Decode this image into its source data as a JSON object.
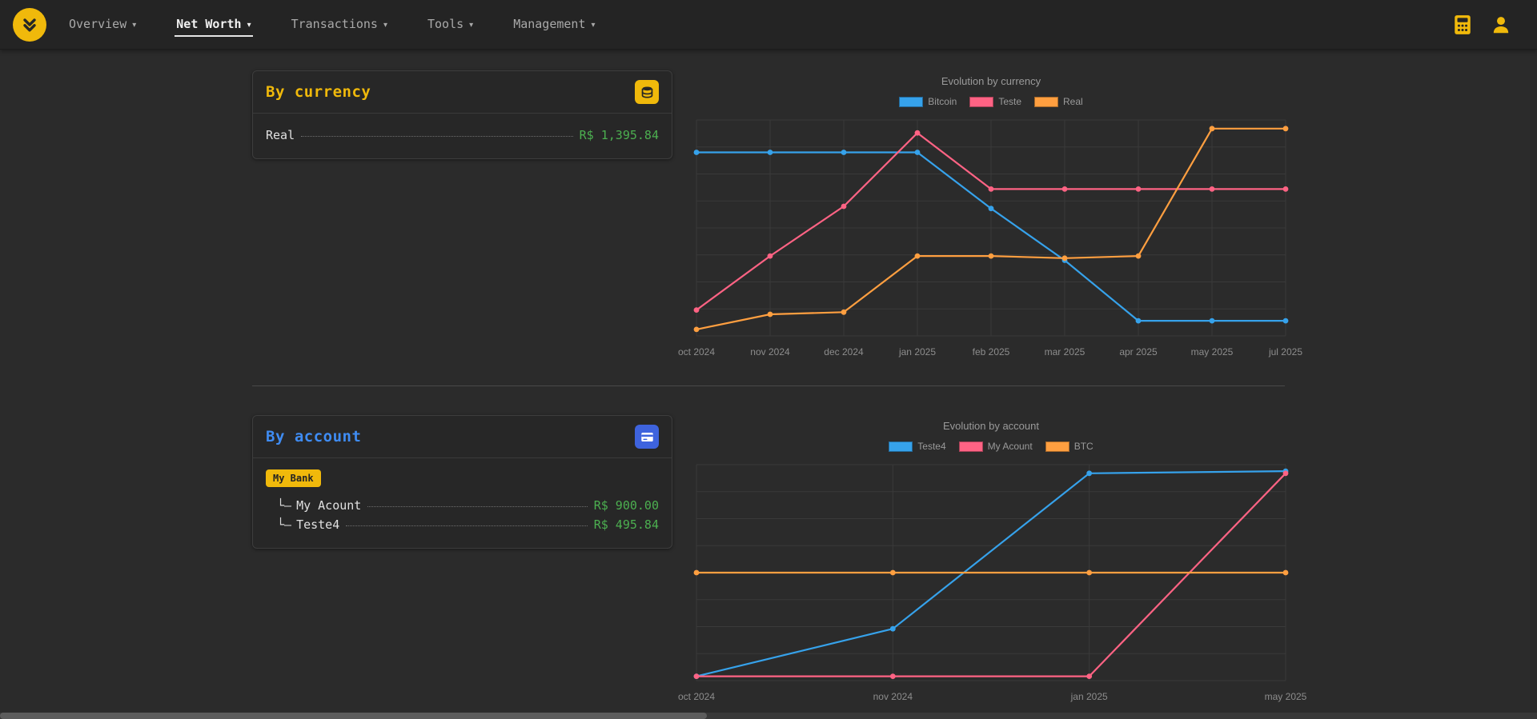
{
  "navbar": {
    "items": [
      {
        "label": "Overview",
        "caret": "▾"
      },
      {
        "label": "Net Worth",
        "caret": "▾"
      },
      {
        "label": "Transactions",
        "caret": "▾"
      },
      {
        "label": "Tools",
        "caret": "▾"
      },
      {
        "label": "Management",
        "caret": "▾"
      }
    ]
  },
  "cards": {
    "currency": {
      "title": "By currency",
      "icon": "coins-icon",
      "rows": [
        {
          "label": "Real",
          "value": "R$ 1,395.84"
        }
      ]
    },
    "account": {
      "title": "By account",
      "icon": "bank-card-icon",
      "badge": "My Bank",
      "rows": [
        {
          "prefix": "└–",
          "label": "My Acount",
          "value": "R$ 900.00"
        },
        {
          "prefix": "└–",
          "label": "Teste4",
          "value": "R$ 495.84"
        }
      ]
    }
  },
  "colors": {
    "accent_yellow": "#f0b90b",
    "accent_blue": "#3e63dd",
    "title_blue": "#3f8cf3",
    "positive_green": "#4caf50",
    "chart_blue": "#36a2eb",
    "chart_pink": "#ff6384",
    "chart_orange": "#ff9f40",
    "grid": "#3a3a3a",
    "tick_label": "#8d8d8d"
  },
  "chart_data": [
    {
      "type": "line",
      "title": "Evolution by currency",
      "x": [
        "oct 2024",
        "nov 2024",
        "dec 2024",
        "jan 2025",
        "feb 2025",
        "mar 2025",
        "apr 2025",
        "may 2025",
        "jul 2025"
      ],
      "series": [
        {
          "name": "Bitcoin",
          "color": "#36a2eb",
          "values": [
            85,
            85,
            85,
            85,
            59,
            35,
            7,
            7,
            7
          ]
        },
        {
          "name": "Teste",
          "color": "#ff6384",
          "values": [
            12,
            37,
            60,
            94,
            68,
            68,
            68,
            68,
            68
          ]
        },
        {
          "name": "Real",
          "color": "#ff9f40",
          "values": [
            3,
            10,
            11,
            37,
            37,
            36,
            37,
            96,
            96
          ]
        }
      ],
      "ylim": [
        0,
        100
      ],
      "grid": true,
      "legend_position": "top"
    },
    {
      "type": "line",
      "title": "Evolution by account",
      "x": [
        "oct 2024",
        "nov 2024",
        "jan 2025",
        "may 2025"
      ],
      "series": [
        {
          "name": "Teste4",
          "color": "#36a2eb",
          "values": [
            2,
            24,
            96,
            97
          ]
        },
        {
          "name": "My Acount",
          "color": "#ff6384",
          "values": [
            2,
            2,
            2,
            96
          ]
        },
        {
          "name": "BTC",
          "color": "#ff9f40",
          "values": [
            50,
            50,
            50,
            50
          ]
        }
      ],
      "ylim": [
        0,
        100
      ],
      "grid": true,
      "legend_position": "top"
    }
  ]
}
